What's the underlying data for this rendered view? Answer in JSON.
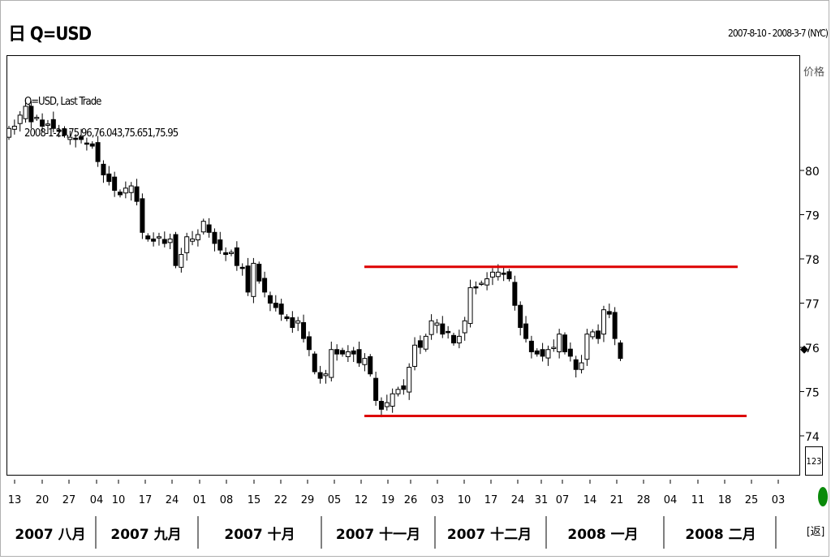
{
  "header": {
    "title": "Q=USD",
    "title_prefix": "日",
    "date_range": "2007-8-10 - 2008-3-7 (NYC)"
  },
  "legend": {
    "series_label": "Q=USD, Last Trade",
    "ohlc_readout": "2008-1-25,75.96,76.043,75.651,75.95"
  },
  "price_axis_label": "价格",
  "btn_123": "123",
  "back_label": "[返]",
  "colors": {
    "resistance_line": "#dd0000",
    "candle": "#000000"
  },
  "chart_data": {
    "type": "candlestick",
    "title": "Q=USD",
    "series_name": "Q=USD, Last Trade",
    "x_range": [
      "2007-08-10",
      "2008-03-07"
    ],
    "ylim": [
      73.8,
      80.5
    ],
    "yticks": [
      74,
      75,
      76,
      77,
      78,
      79,
      80
    ],
    "xticks": [
      "13",
      "20",
      "27",
      "04",
      "10",
      "17",
      "24",
      "01",
      "08",
      "15",
      "22",
      "29",
      "05",
      "12",
      "19",
      "26",
      "03",
      "10",
      "17",
      "24",
      "31",
      "07",
      "14",
      "21",
      "28",
      "04",
      "11",
      "18",
      "25",
      "03"
    ],
    "months": [
      "2007 八月",
      "2007 九月",
      "2007 十月",
      "2007 十一月",
      "2007 十二月",
      "2008 一月",
      "2008 二月"
    ],
    "closes": [
      80.95,
      81.0,
      81.25,
      81.45,
      81.1,
      81.2,
      81.0,
      81.05,
      80.95,
      80.9,
      80.8,
      80.75,
      80.7,
      80.7,
      80.6,
      80.55,
      80.2,
      79.9,
      79.75,
      79.55,
      79.45,
      79.6,
      79.65,
      79.3,
      78.6,
      78.45,
      78.4,
      78.5,
      78.35,
      78.45,
      77.85,
      78.1,
      78.5,
      78.45,
      78.55,
      78.85,
      78.6,
      78.35,
      78.2,
      78.1,
      78.15,
      77.85,
      77.8,
      77.25,
      77.9,
      77.5,
      77.25,
      77.0,
      76.9,
      76.75,
      76.65,
      76.45,
      76.6,
      76.2,
      75.95,
      75.45,
      75.3,
      75.4,
      75.95,
      75.85,
      75.85,
      75.9,
      75.85,
      75.65,
      75.75,
      75.4,
      74.8,
      74.6,
      74.75,
      74.95,
      75.05,
      75.05,
      75.55,
      76.05,
      76.0,
      76.25,
      76.6,
      76.55,
      76.3,
      76.35,
      76.1,
      76.25,
      76.6,
      77.35,
      77.35,
      77.45,
      77.55,
      77.7,
      77.7,
      77.65,
      77.55,
      76.95,
      76.45,
      76.2,
      75.9,
      75.85,
      75.8,
      75.95,
      76.0,
      76.3,
      75.9,
      75.8,
      75.5,
      75.65,
      76.3,
      76.35,
      76.2,
      76.85,
      76.75,
      76.2,
      75.75
    ],
    "resistance": 77.82,
    "support": 74.45
  }
}
